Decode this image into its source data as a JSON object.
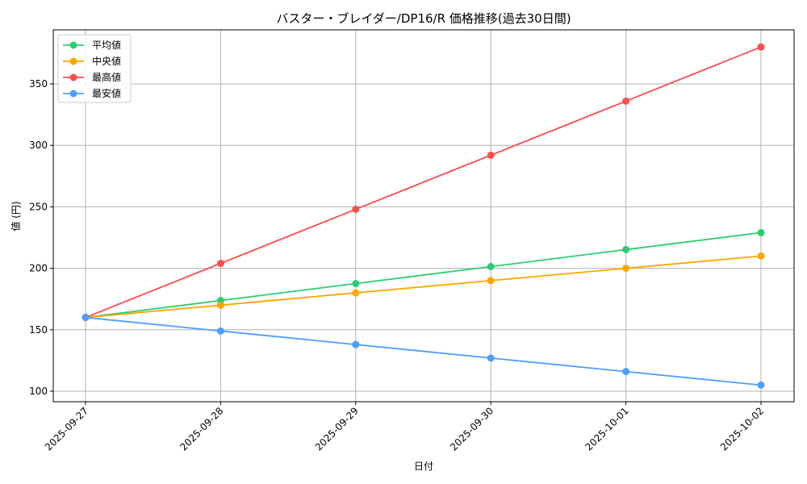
{
  "chart_data": {
    "type": "line",
    "title": "バスター・ブレイダー/DP16/R 価格推移(過去30日間)",
    "xlabel": "日付",
    "ylabel": "値 (円)",
    "categories": [
      "2025-09-27",
      "2025-09-28",
      "2025-09-29",
      "2025-09-30",
      "2025-10-01",
      "2025-10-02"
    ],
    "yticks": [
      100,
      150,
      200,
      250,
      300,
      350
    ],
    "ylim": [
      90,
      392
    ],
    "grid": true,
    "legend_position": "top-left",
    "series": [
      {
        "name": "平均値",
        "color": "#2ecc71",
        "values": [
          160,
          173.8,
          187.6,
          201.4,
          215.2,
          229
        ]
      },
      {
        "name": "中央値",
        "color": "#ffa500",
        "values": [
          160,
          170,
          180,
          190,
          200,
          210
        ]
      },
      {
        "name": "最高値",
        "color": "#ff4d4d",
        "values": [
          160,
          204,
          248,
          292,
          336,
          380
        ]
      },
      {
        "name": "最安値",
        "color": "#4d9eff",
        "values": [
          160,
          149,
          138,
          127,
          116,
          105
        ]
      }
    ]
  }
}
